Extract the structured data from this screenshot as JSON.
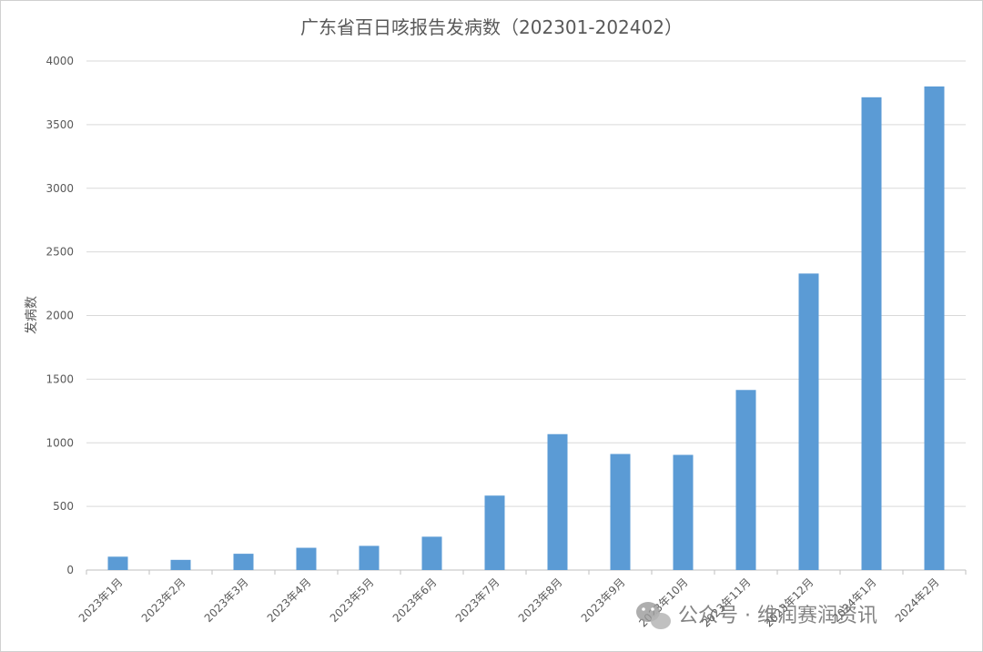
{
  "chart_data": {
    "type": "bar",
    "title": "广东省百日咳报告发病数（202301-202402）",
    "xlabel": "",
    "ylabel": "发病数",
    "ylim": [
      0,
      4000
    ],
    "yticks": [
      0,
      500,
      1000,
      1500,
      2000,
      2500,
      3000,
      3500,
      4000
    ],
    "grid": true,
    "bar_color": "#5b9bd5",
    "categories": [
      "2023年1月",
      "2023年2月",
      "2023年3月",
      "2023年4月",
      "2023年5月",
      "2023年6月",
      "2023年7月",
      "2023年8月",
      "2023年9月",
      "2023年10月",
      "2023年11月",
      "2023年12月",
      "2024年1月",
      "2024年2月"
    ],
    "values": [
      105,
      80,
      128,
      175,
      190,
      262,
      585,
      1068,
      912,
      905,
      1415,
      2330,
      3715,
      3800
    ]
  },
  "watermark": {
    "icon": "wechat-icon",
    "text": "公众号 · 维润赛润资讯"
  }
}
